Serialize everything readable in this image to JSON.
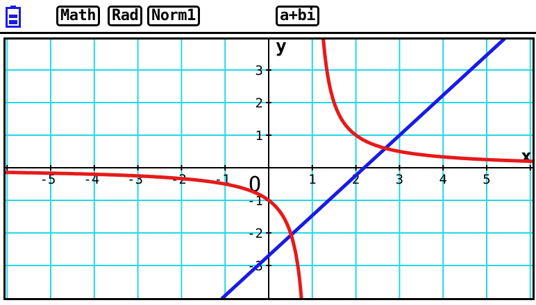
{
  "status_bar": {
    "battery_icon": "battery-icon",
    "modes": [
      "Math",
      "Rad",
      "Norm1"
    ],
    "complex_mode": "a+bi"
  },
  "graph": {
    "axes": {
      "x_label": "x",
      "y_label": "y",
      "origin_label": "O",
      "x_tick_labels": [
        "-5",
        "-4",
        "-3",
        "-2",
        "-1",
        "1",
        "2",
        "3",
        "4",
        "5"
      ],
      "y_tick_labels": [
        "3",
        "2",
        "1",
        "-1",
        "-2",
        "-3"
      ]
    },
    "colors": {
      "background": "#ffffff",
      "grid": "#22d8e8",
      "axes": "#000000",
      "line_graph": "#1a1ae6",
      "curve_graph": "#e61a1a",
      "frame": "#000000"
    }
  },
  "chart_data": {
    "type": "line",
    "xlim": [
      -6.05,
      6.5
    ],
    "ylim": [
      -4,
      3.95
    ],
    "grid": true,
    "series": [
      {
        "color": "#1a1ae6",
        "x": [
          -1.06,
          5.4
        ],
        "y": [
          -4.0,
          3.95
        ]
      },
      {
        "color": "#e61a1a",
        "x_range": [
          -6.05,
          6.0
        ],
        "y_breakpoints": [
          [
            -6.05,
            -0.22
          ],
          [
            -3,
            -0.33
          ],
          [
            -2,
            -0.5
          ],
          [
            -1,
            -1.0
          ],
          [
            -0.5,
            -2.0
          ],
          [
            -0.3,
            -4.0
          ],
          [
            0.26,
            3.95
          ],
          [
            0.5,
            2.0
          ],
          [
            1,
            1.0
          ],
          [
            2,
            0.5
          ],
          [
            3,
            0.33
          ],
          [
            4,
            0.25
          ],
          [
            5,
            0.2
          ],
          [
            6,
            0.17
          ]
        ]
      }
    ]
  }
}
